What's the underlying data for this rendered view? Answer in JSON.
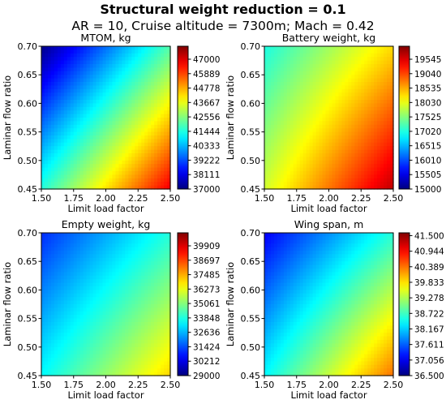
{
  "figure": {
    "title": "Structural weight reduction =  0.1",
    "subtitle": "AR = 10, Cruise altitude = 7300m; Mach = 0.42"
  },
  "chart_data": [
    {
      "type": "heatmap",
      "title": "MTOM, kg",
      "xlabel": "Limit load factor",
      "ylabel": "Laminar flow ratio",
      "xlim": [
        1.5,
        2.5
      ],
      "ylim": [
        0.45,
        0.7
      ],
      "x_ticks": [
        "1.50",
        "1.75",
        "2.00",
        "2.25",
        "2.50"
      ],
      "y_ticks": [
        "0.45",
        "0.50",
        "0.55",
        "0.60",
        "0.65",
        "0.70"
      ],
      "colorbar_ticks": [
        "37000",
        "38111",
        "39222",
        "40333",
        "41444",
        "42556",
        "43667",
        "44778",
        "45889",
        "47000"
      ],
      "colorbar_range": [
        37000,
        48000
      ],
      "corner_values": {
        "x1.50_y0.70": 37100,
        "x2.50_y0.70": 42000,
        "x1.50_y0.45": 41500,
        "x2.50_y0.45": 46800
      },
      "colormap": "jet"
    },
    {
      "type": "heatmap",
      "title": "Battery weight, kg",
      "xlabel": "Limit load factor",
      "ylabel": "Laminar flow ratio",
      "xlim": [
        1.5,
        2.5
      ],
      "ylim": [
        0.45,
        0.7
      ],
      "x_ticks": [
        "1.50",
        "1.75",
        "2.00",
        "2.25",
        "2.50"
      ],
      "y_ticks": [
        "0.45",
        "0.50",
        "0.55",
        "0.60",
        "0.65",
        "0.70"
      ],
      "colorbar_ticks": [
        "15000",
        "15505",
        "16010",
        "16515",
        "17020",
        "17525",
        "18030",
        "18535",
        "19040",
        "19545"
      ],
      "colorbar_range": [
        15000,
        20000
      ],
      "corner_values": {
        "x1.50_y0.70": 17000,
        "x2.50_y0.70": 18300,
        "x1.50_y0.45": 17900,
        "x2.50_y0.45": 19700
      },
      "colormap": "jet"
    },
    {
      "type": "heatmap",
      "title": "Empty weight, kg",
      "xlabel": "Limit load factor",
      "ylabel": "Laminar flow ratio",
      "xlim": [
        1.5,
        2.5
      ],
      "ylim": [
        0.45,
        0.7
      ],
      "x_ticks": [
        "1.50",
        "1.75",
        "2.00",
        "2.25",
        "2.50"
      ],
      "y_ticks": [
        "0.45",
        "0.50",
        "0.55",
        "0.60",
        "0.65",
        "0.70"
      ],
      "colorbar_ticks": [
        "29000",
        "30212",
        "31424",
        "32636",
        "33848",
        "35061",
        "36273",
        "37485",
        "38697",
        "39909"
      ],
      "colorbar_range": [
        29000,
        41000
      ],
      "corner_values": {
        "x1.50_y0.70": 31000,
        "x2.50_y0.70": 33900,
        "x1.50_y0.45": 33500,
        "x2.50_y0.45": 37000
      },
      "colormap": "jet"
    },
    {
      "type": "heatmap",
      "title": "Wing span, m",
      "xlabel": "Limit load factor",
      "ylabel": "Laminar flow ratio",
      "xlim": [
        1.5,
        2.5
      ],
      "ylim": [
        0.45,
        0.7
      ],
      "x_ticks": [
        "1.50",
        "1.75",
        "2.00",
        "2.25",
        "2.50"
      ],
      "y_ticks": [
        "0.45",
        "0.50",
        "0.55",
        "0.60",
        "0.65",
        "0.70"
      ],
      "colorbar_ticks": [
        "36.500",
        "37.056",
        "37.611",
        "38.167",
        "38.722",
        "39.278",
        "39.833",
        "40.389",
        "40.944",
        "41.500"
      ],
      "colorbar_range": [
        36.5,
        41.6
      ],
      "corner_values": {
        "x1.50_y0.70": 37.1,
        "x2.50_y0.70": 38.6,
        "x1.50_y0.45": 38.4,
        "x2.50_y0.45": 40.4
      },
      "colormap": "jet"
    }
  ]
}
